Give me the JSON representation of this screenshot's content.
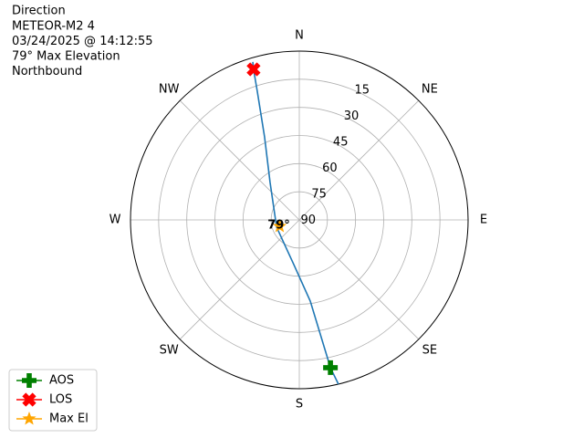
{
  "chart_data": {
    "type": "polar",
    "title": "Direction",
    "subtitle_lines": [
      "METEOR-M2 4",
      "03/24/2025 @ 14:12:55",
      "79° Max Elevation",
      "Northbound"
    ],
    "theta_direction": "clockwise",
    "theta_zero": "N",
    "rlim": [
      90,
      0
    ],
    "rticks": [
      15,
      30,
      45,
      60,
      75,
      90
    ],
    "theta_ticks": [
      {
        "value": 0,
        "label": "N"
      },
      {
        "value": 45,
        "label": "NE"
      },
      {
        "value": 90,
        "label": "E"
      },
      {
        "value": 135,
        "label": "SE"
      },
      {
        "value": 180,
        "label": "S"
      },
      {
        "value": 225,
        "label": "SW"
      },
      {
        "value": 270,
        "label": "W"
      },
      {
        "value": 315,
        "label": "NW"
      }
    ],
    "grid": true,
    "legend": "lower left",
    "series": [
      {
        "color": "#1f77b4",
        "marker": "none",
        "theta": [
          166.6,
          168.1,
          172.3,
          187.0,
          252.3,
          322.0,
          337.3,
          341.9,
          343.1,
          343.6
        ],
        "r": [
          0,
          9.5,
          46.3,
          66.0,
          77.3,
          64.7,
          42.0,
          17.9,
          6.1,
          2.2
        ]
      },
      {
        "name": "AOS",
        "color": "#008000",
        "marker": "plus",
        "theta": [
          168.1
        ],
        "r": [
          9.5
        ]
      },
      {
        "name": "LOS",
        "color": "#ff0000",
        "marker": "x",
        "theta": [
          343.1
        ],
        "r": [
          6.1
        ]
      },
      {
        "name": "Max El",
        "color": "#ffa500",
        "marker": "star",
        "theta": [
          252
        ],
        "r": [
          79
        ],
        "value_labels": [
          "79°"
        ]
      }
    ]
  }
}
